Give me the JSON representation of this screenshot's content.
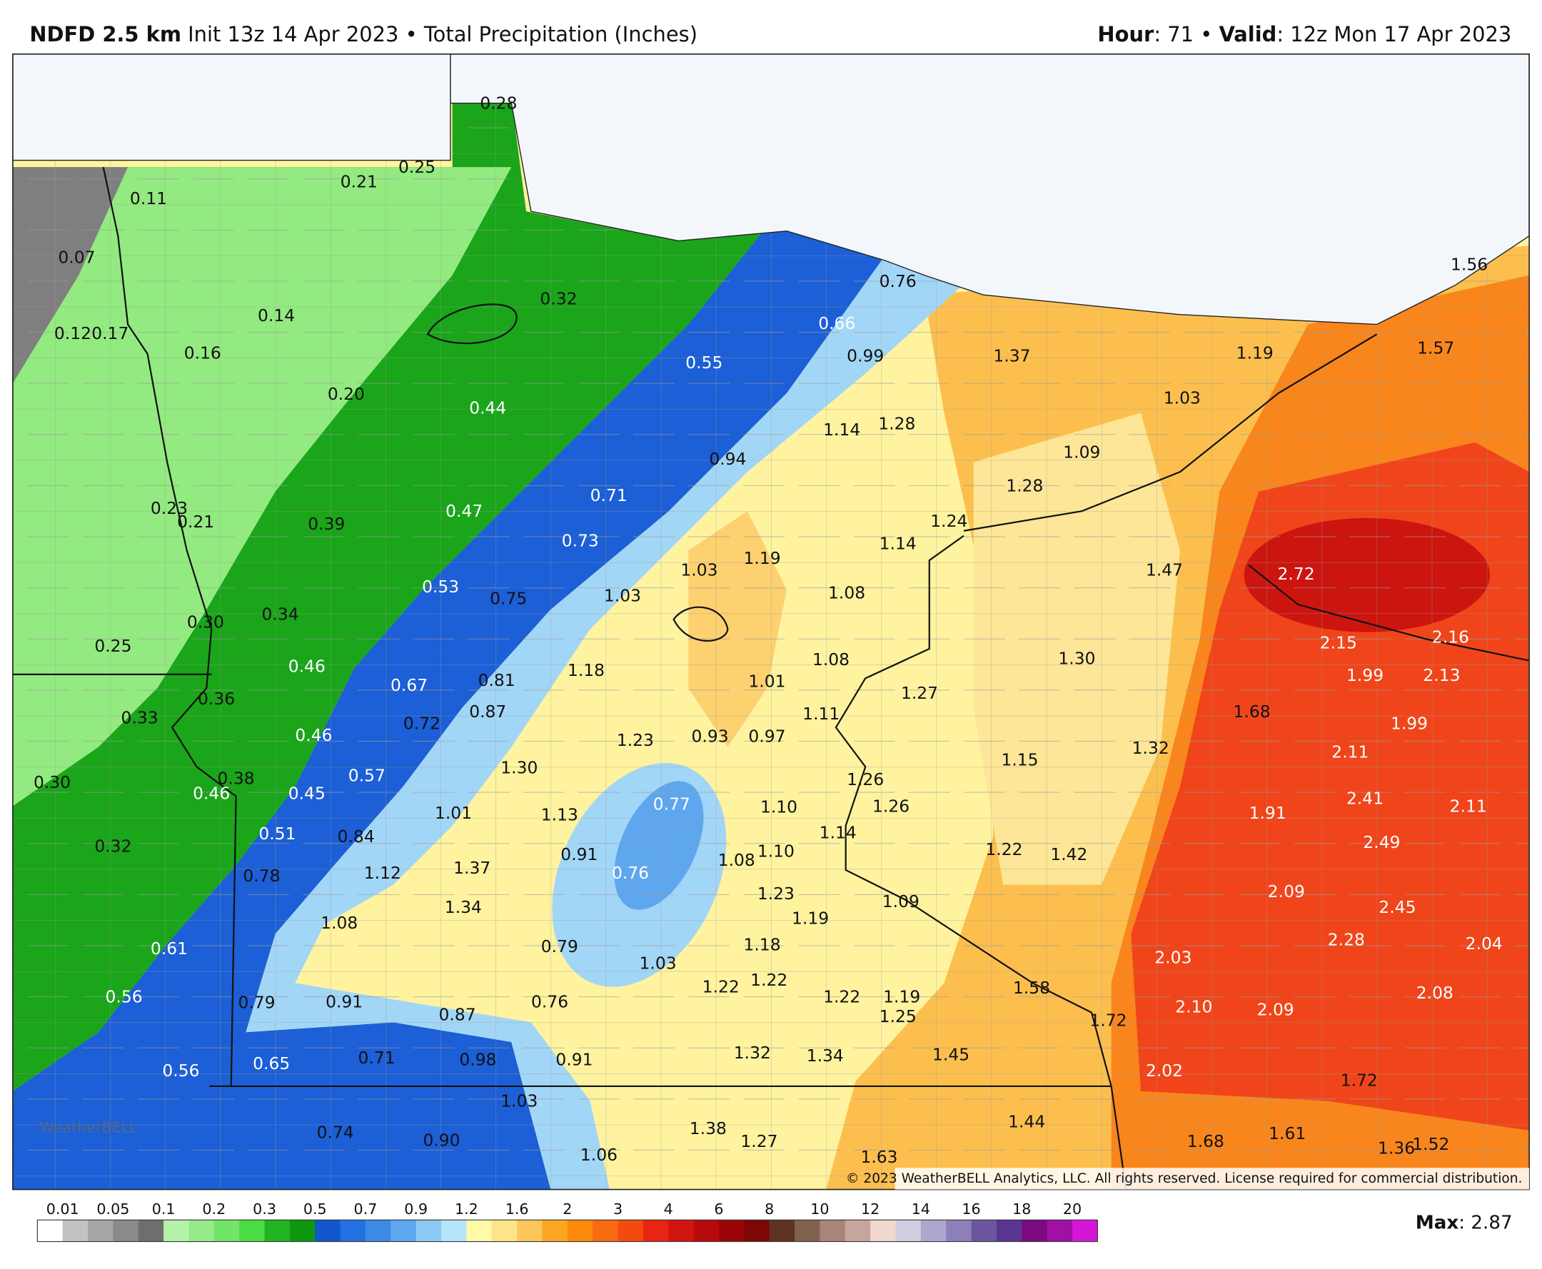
{
  "header": {
    "model": "NDFD 2.5 km",
    "init": "Init 13z 14 Apr 2023",
    "separator": "•",
    "field": "Total Precipitation (Inches)",
    "hour_label": "Hour",
    "hour_value": ": 71",
    "separator_right": "•",
    "valid_label": "Valid",
    "valid_value": ": 12z Mon 17 Apr 2023"
  },
  "map": {
    "labels": [
      "0.28",
      "0.25",
      "0.21",
      "0.11",
      "0.07",
      "0.12",
      "0.17",
      "0.14",
      "0.16",
      "0.32",
      "0.20",
      "0.44",
      "0.55",
      "0.66",
      "0.76",
      "0.99",
      "1.37",
      "1.19",
      "1.56",
      "1.57",
      "1.03",
      "1.14",
      "1.28",
      "0.94",
      "1.09",
      "0.71",
      "0.23",
      "0.21",
      "0.39",
      "0.47",
      "1.28",
      "1.24",
      "0.73",
      "1.03",
      "1.19",
      "1.14",
      "1.47",
      "2.72",
      "0.53",
      "0.75",
      "1.03",
      "1.08",
      "0.30",
      "0.34",
      "0.25",
      "2.15",
      "2.16",
      "1.08",
      "1.30",
      "0.46",
      "0.67",
      "0.81",
      "1.18",
      "1.01",
      "1.27",
      "1.99",
      "2.13",
      "0.36",
      "0.33",
      "0.72",
      "0.87",
      "1.11",
      "1.68",
      "1.99",
      "0.46",
      "1.23",
      "0.93",
      "0.97",
      "1.32",
      "2.11",
      "1.15",
      "0.57",
      "0.38",
      "0.30",
      "0.46",
      "0.45",
      "1.30",
      "1.26",
      "1.26",
      "2.41",
      "2.11",
      "1.01",
      "1.13",
      "0.77",
      "1.10",
      "1.91",
      "0.51",
      "0.84",
      "1.14",
      "0.32",
      "1.22",
      "1.42",
      "2.49",
      "0.91",
      "1.10",
      "1.08",
      "0.78",
      "1.12",
      "1.37",
      "0.76",
      "1.23",
      "1.09",
      "2.09",
      "2.45",
      "1.34",
      "1.19",
      "1.08",
      "0.61",
      "0.79",
      "1.18",
      "1.03",
      "2.28",
      "2.04",
      "2.03",
      "1.22",
      "1.22",
      "1.58",
      "2.08",
      "0.56",
      "0.79",
      "0.91",
      "0.87",
      "0.76",
      "1.22",
      "1.19",
      "1.25",
      "1.72",
      "2.10",
      "2.09",
      "0.65",
      "0.71",
      "0.98",
      "0.91",
      "1.32",
      "1.34",
      "1.45",
      "0.56",
      "2.02",
      "1.72",
      "1.03",
      "1.44",
      "1.38",
      "0.74",
      "0.90",
      "1.27",
      "1.06",
      "1.68",
      "1.61",
      "1.36",
      "1.52",
      "1.63"
    ],
    "copyright": "© 2023 WeatherBELL Analytics, LLC. All rights reserved. License required for commercial distribution.",
    "logo": "WeatherBELL"
  },
  "colorbar": {
    "ticks": [
      0.01,
      0.05,
      0.1,
      0.2,
      0.3,
      0.5,
      0.7,
      0.9,
      1.2,
      1.6,
      2,
      3,
      4,
      6,
      8,
      10,
      12,
      14,
      16,
      18,
      20
    ],
    "colors": [
      "#ffffff",
      "#c2c2c2",
      "#a6a6a6",
      "#8a8a8a",
      "#6e6e6e",
      "#b6f3a8",
      "#96ec88",
      "#72e566",
      "#4bdc44",
      "#22b322",
      "#0f960f",
      "#1256d0",
      "#2370e0",
      "#3d8ae6",
      "#5ea6ee",
      "#8cc8f4",
      "#b6e5f9",
      "#fffaa8",
      "#fde488",
      "#fcc65a",
      "#fca624",
      "#fd8a0a",
      "#f96a12",
      "#f44a10",
      "#e82512",
      "#d2140e",
      "#b80a0a",
      "#9c0507",
      "#7e0606",
      "#5e3321",
      "#80604f",
      "#a88578",
      "#c6a69c",
      "#f1d8cf",
      "#d2cde0",
      "#aea6cc",
      "#8d80ba",
      "#6c56a0",
      "#5a3690",
      "#7b0a80",
      "#a010a4",
      "#d616d6"
    ],
    "max_label": "Max",
    "max_value": ": 2.87"
  }
}
